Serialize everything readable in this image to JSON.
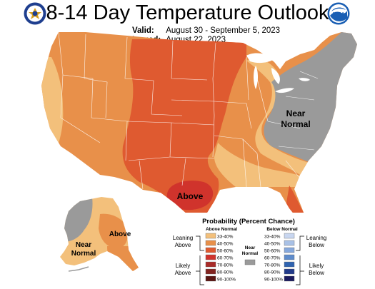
{
  "title": "8-14 Day Temperature Outlook",
  "valid_label": "Valid:",
  "valid_value": "August 30 - September 5, 2023",
  "issued_label": "Issued:",
  "issued_value": "August 22, 2023",
  "logo_right_text": "NOAA",
  "map_labels": {
    "above_main": "Above",
    "near_normal_east_1": "Near",
    "near_normal_east_2": "Normal",
    "alaska_above": "Above",
    "alaska_near_1": "Near",
    "alaska_near_2": "Normal"
  },
  "legend": {
    "title": "Probability (Percent Chance)",
    "above_header": "Above Normal",
    "below_header": "Below Normal",
    "near_label_1": "Near",
    "near_label_2": "Normal",
    "leaning_above_1": "Leaning",
    "leaning_above_2": "Above",
    "likely_above_1": "Likely",
    "likely_above_2": "Above",
    "leaning_below_1": "Leaning",
    "leaning_below_2": "Below",
    "likely_below_1": "Likely",
    "likely_below_2": "Below",
    "above_ranges": [
      "33-40%",
      "40-50%",
      "50-60%",
      "60-70%",
      "70-80%",
      "80-90%",
      "90-100%"
    ],
    "below_ranges": [
      "33-40%",
      "40-50%",
      "50-60%",
      "60-70%",
      "70-80%",
      "80-90%",
      "90-100%"
    ],
    "above_colors": [
      "#f3c07b",
      "#e8904a",
      "#df5a30",
      "#d0332c",
      "#a92b28",
      "#82231f",
      "#5a1512"
    ],
    "below_colors": [
      "#c8d6f0",
      "#a9c1e6",
      "#86a8dc",
      "#5e8ccc",
      "#2f63b0",
      "#213a8a",
      "#1a1a5e"
    ],
    "near_color": "#9a9a9a"
  }
}
